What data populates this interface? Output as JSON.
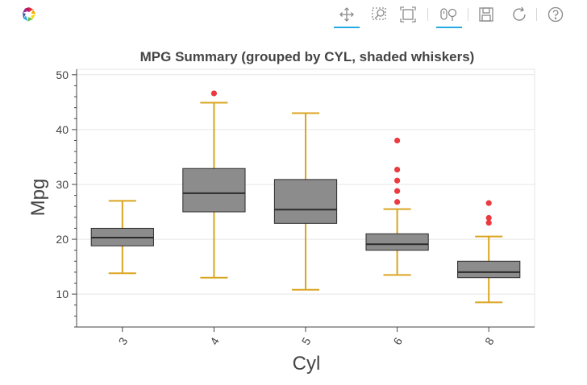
{
  "toolbar": {
    "logo_icon": "bokeh-logo-icon",
    "tools": [
      {
        "name": "pan-tool",
        "icon": "pan-icon",
        "active": true
      },
      {
        "name": "box-zoom-tool",
        "icon": "box-zoom-icon",
        "active": false
      },
      {
        "name": "box-select-tool",
        "icon": "box-select-icon",
        "active": false
      },
      {
        "name": "wheel-zoom-tool",
        "icon": "wheel-zoom-icon",
        "active": true
      },
      {
        "name": "save-tool",
        "icon": "save-icon",
        "active": false
      },
      {
        "name": "reset-tool",
        "icon": "reset-icon",
        "active": false
      },
      {
        "name": "help-tool",
        "icon": "help-icon",
        "active": false
      }
    ],
    "accent_color": "#26aae1"
  },
  "chart_data": {
    "type": "box",
    "title": "MPG Summary (grouped by CYL, shaded whiskers)",
    "xlabel": "Cyl",
    "ylabel": "Mpg",
    "categories": [
      "3",
      "4",
      "5",
      "6",
      "8"
    ],
    "ylim": [
      4,
      51
    ],
    "yticks": [
      10,
      20,
      30,
      40,
      50
    ],
    "grid": true,
    "colors": {
      "box": "#8c8c8c",
      "whisker": "#daa520",
      "outlier": "#e8262b"
    },
    "boxes": [
      {
        "category": "3",
        "lower_whisker": 13.8,
        "q1": 18.8,
        "median": 20.3,
        "q3": 22.0,
        "upper_whisker": 27.0,
        "outliers": []
      },
      {
        "category": "4",
        "lower_whisker": 13.0,
        "q1": 25.0,
        "median": 28.4,
        "q3": 32.9,
        "upper_whisker": 44.9,
        "outliers": [
          46.6
        ]
      },
      {
        "category": "5",
        "lower_whisker": 10.8,
        "q1": 22.9,
        "median": 25.4,
        "q3": 30.9,
        "upper_whisker": 43.0,
        "outliers": []
      },
      {
        "category": "6",
        "lower_whisker": 13.5,
        "q1": 18.0,
        "median": 19.1,
        "q3": 21.0,
        "upper_whisker": 25.5,
        "outliers": [
          26.8,
          28.8,
          30.7,
          32.7,
          38.0
        ]
      },
      {
        "category": "8",
        "lower_whisker": 8.5,
        "q1": 13.0,
        "median": 14.0,
        "q3": 16.0,
        "upper_whisker": 20.5,
        "outliers": [
          23.0,
          23.9,
          26.6
        ]
      }
    ]
  }
}
